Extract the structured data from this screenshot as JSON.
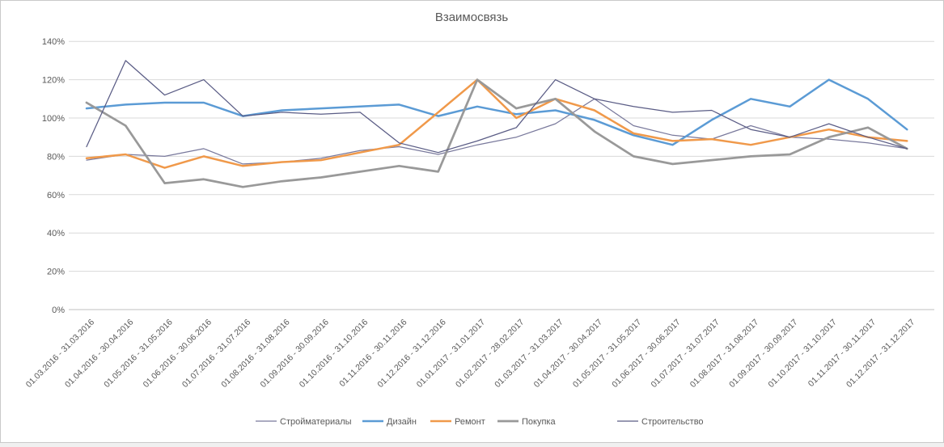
{
  "title": "Взаимосвязь",
  "chart_data": {
    "type": "line",
    "title": "Взаимосвязь",
    "categories": [
      "01.03.2016 - 31.03.2016",
      "01.04.2016 - 30.04.2016",
      "01.05.2016 - 31.05.2016",
      "01.06.2016 - 30.06.2016",
      "01.07.2016 - 31.07.2016",
      "01.08.2016 - 31.08.2016",
      "01.09.2016 - 30.09.2016",
      "01.10.2016 - 31.10.2016",
      "01.11.2016 - 30.11.2016",
      "01.12.2016 - 31.12.2016",
      "01.01.2017 - 31.01.2017",
      "01.02.2017 - 28.02.2017",
      "01.03.2017 - 31.03.2017",
      "01.04.2017 - 30.04.2017",
      "01.05.2017 - 31.05.2017",
      "01.06.2017 - 30.06.2017",
      "01.07.2017 - 31.07.2017",
      "01.08.2017 - 31.08.2017",
      "01.09.2017 - 30.09.2017",
      "01.10.2017 - 31.10.2017",
      "01.11.2017 - 30.11.2017",
      "01.12.2017 - 31.12.2017"
    ],
    "series": [
      {
        "name": "Стройматериалы",
        "color": "#79799C",
        "width": 1.25,
        "values": [
          78,
          81,
          80,
          84,
          76,
          77,
          79,
          83,
          85,
          81,
          86,
          90,
          97,
          110,
          96,
          91,
          89,
          96,
          90,
          89,
          87,
          84
        ]
      },
      {
        "name": "Дизайн",
        "color": "#5B9BD5",
        "width": 2.5,
        "values": [
          105,
          107,
          108,
          108,
          101,
          104,
          105,
          106,
          107,
          101,
          106,
          102,
          104,
          99,
          91,
          86,
          99,
          110,
          106,
          120,
          110,
          94
        ]
      },
      {
        "name": "Ремонт",
        "color": "#F0994A",
        "width": 2.5,
        "values": [
          79,
          81,
          74,
          80,
          75,
          77,
          78,
          82,
          86,
          103,
          120,
          100,
          110,
          104,
          92,
          88,
          89,
          86,
          90,
          94,
          90,
          88
        ]
      },
      {
        "name": "Покупка",
        "color": "#999999",
        "width": 2.75,
        "values": [
          108,
          96,
          66,
          68,
          64,
          67,
          69,
          72,
          75,
          72,
          120,
          105,
          110,
          93,
          80,
          76,
          78,
          80,
          81,
          90,
          95,
          84
        ]
      },
      {
        "name": "Строительство",
        "color": "#5A5C85",
        "width": 1.25,
        "values": [
          85,
          130,
          112,
          120,
          101,
          103,
          102,
          103,
          87,
          82,
          88,
          95,
          120,
          110,
          106,
          103,
          104,
          94,
          90,
          97,
          90,
          84
        ]
      }
    ],
    "yticks": [
      "0%",
      "20%",
      "40%",
      "60%",
      "80%",
      "100%",
      "120%",
      "140%"
    ],
    "ylim": [
      0,
      140
    ],
    "ytick_step": 20,
    "grid": true,
    "legend_position": "bottom",
    "colors": {
      "grid_line": "#D9D9D9",
      "axis_line": "#BFBFBF",
      "tick_label": "#595959",
      "title": "#595959",
      "border": "#C9C9C9"
    }
  }
}
